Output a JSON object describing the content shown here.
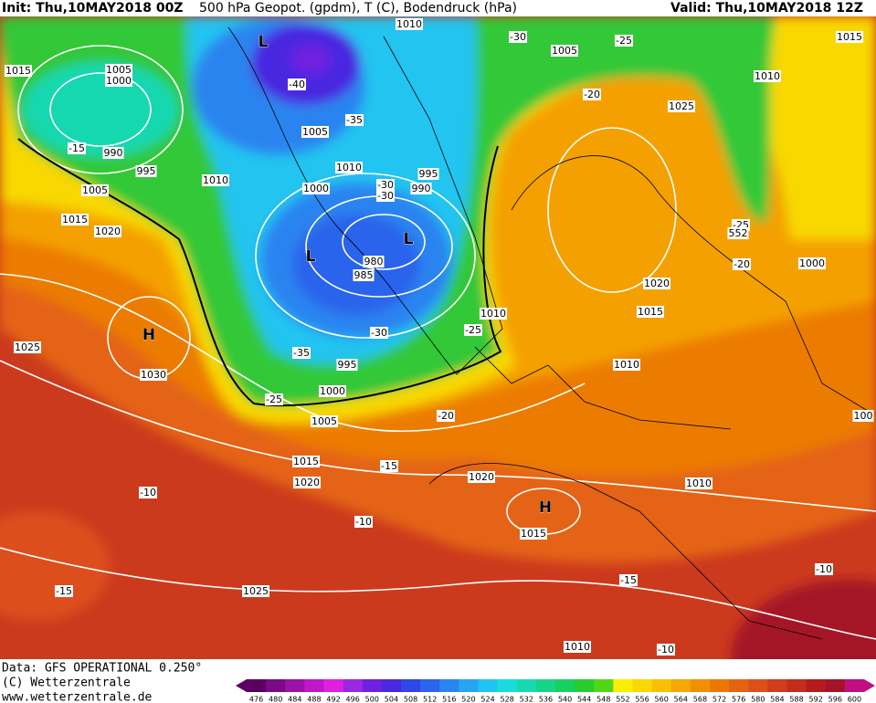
{
  "header": {
    "init": "Init: Thu,10MAY2018 00Z",
    "title": "500 hPa Geopot. (gpdm), T (C), Bodendruck (hPa)",
    "valid": "Valid: Thu,10MAY2018 12Z"
  },
  "map": {
    "labels": [
      "1010",
      "-30",
      "-25",
      "1005",
      "1015",
      "1015",
      "1005",
      "1000",
      "L",
      "-40",
      "1010",
      "-20",
      "1025",
      "-35",
      "1005",
      "-15",
      "990",
      "1010",
      "995",
      "995",
      "1010",
      "1000",
      "-30",
      "990",
      "-30",
      "1005",
      "1015",
      "1020",
      "-25",
      "552",
      "L",
      "L",
      "980",
      "985",
      "-20",
      "1000",
      "1020",
      "1015",
      "1010",
      "-25",
      "-30",
      "H",
      "1025",
      "-35",
      "995",
      "1010",
      "1030",
      "1000",
      "-25",
      "1005",
      "-20",
      "1015",
      "-15",
      "1020",
      "1020",
      "1010",
      "-10",
      "H",
      "-10",
      "1015",
      "-15",
      "-10",
      "-15",
      "1025",
      "1010",
      "-10",
      "100"
    ]
  },
  "footer": {
    "data": "Data: GFS OPERATIONAL 0.250°",
    "copyright": "(C) Wetterzentrale",
    "url": "www.wetterzentrale.de"
  },
  "colorbar": {
    "values": [
      476,
      480,
      484,
      488,
      492,
      496,
      500,
      504,
      508,
      512,
      516,
      520,
      524,
      528,
      532,
      536,
      540,
      544,
      548,
      552,
      556,
      560,
      564,
      568,
      572,
      576,
      580,
      584,
      588,
      592,
      596,
      600
    ],
    "colors": [
      "#5c0060",
      "#7a0a88",
      "#9c12a8",
      "#c018c8",
      "#e020e0",
      "#9a28e0",
      "#7020e0",
      "#4a28e0",
      "#3046e8",
      "#2c64ec",
      "#2c84f0",
      "#28a4f0",
      "#20c4f0",
      "#18dcdc",
      "#18d8b0",
      "#18d488",
      "#18d060",
      "#28cc30",
      "#50d818",
      "#f8f000",
      "#f8d800",
      "#f8c000",
      "#f4a800",
      "#f09000",
      "#ec7800",
      "#e46414",
      "#dc501c",
      "#d03c1c",
      "#c42c1c",
      "#b41c1c",
      "#a41428",
      "#c01080"
    ]
  }
}
